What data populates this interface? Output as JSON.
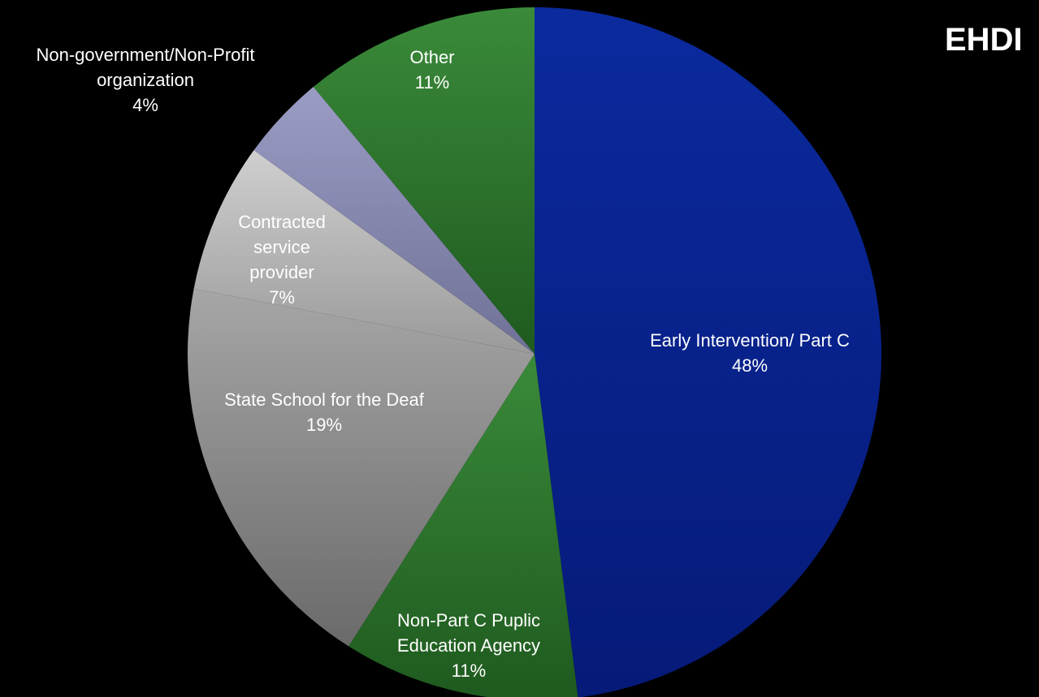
{
  "chart_data": {
    "type": "pie",
    "title": "EHDI",
    "start": "top",
    "direction": "clockwise",
    "slices": [
      {
        "label_lines": [
          "Early Intervention/ Part C"
        ],
        "percent_text": "48%",
        "value": 48,
        "color_light": "#0b2a9e",
        "color_dark": "#061a78"
      },
      {
        "label_lines": [
          "Non-Part C Puplic",
          "Education Agency"
        ],
        "percent_text": "11%",
        "value": 11,
        "color_light": "#3a8a3a",
        "color_dark": "#1f5a1f"
      },
      {
        "label_lines": [
          "State School for the Deaf"
        ],
        "percent_text": "19%",
        "value": 19,
        "color_light": "#a6a6a6",
        "color_dark": "#6a6a6a"
      },
      {
        "label_lines": [
          "Contracted",
          "service",
          "provider"
        ],
        "percent_text": "7%",
        "value": 7,
        "color_light": "#cfcfcf",
        "color_dark": "#9a9a9a"
      },
      {
        "label_lines": [
          "Non-government/Non-Profit",
          "organization"
        ],
        "percent_text": "4%",
        "value": 4,
        "color_light": "#9a9cc4",
        "color_dark": "#6f7196"
      },
      {
        "label_lines": [
          "Other"
        ],
        "percent_text": "11%",
        "value": 11,
        "color_light": "#3a8a3a",
        "color_dark": "#1f5a1f"
      }
    ]
  }
}
